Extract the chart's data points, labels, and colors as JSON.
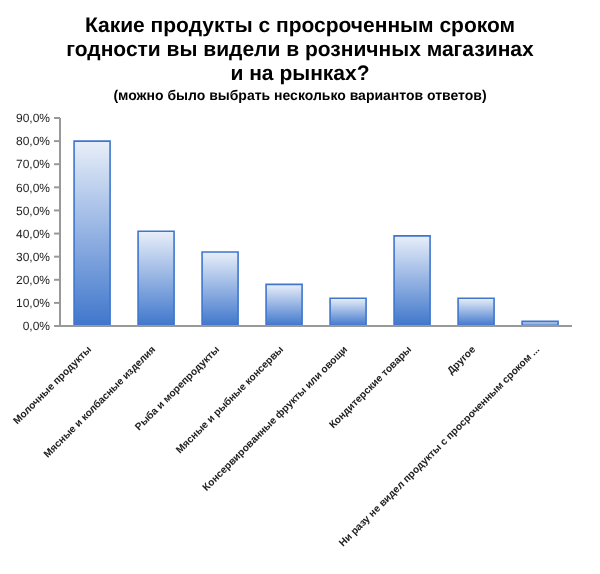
{
  "chart_data": {
    "type": "bar",
    "title": "Какие продукты с просроченным сроком годности вы видели в розничных магазинах и на рынках?",
    "subtitle": "(можно было выбрать несколько вариантов ответов)",
    "categories": [
      "Молочные продукты",
      "Мясные и колбасные изделия",
      "Рыба и морепродукты",
      "Мясные и рыбные консервы",
      "Консервированные фрукты или овощи",
      "Кондитерские товары",
      "Другое",
      "Ни разу не видел продукты с просроченным сроком ..."
    ],
    "values": [
      80,
      41,
      32,
      18,
      12,
      39,
      12,
      2
    ],
    "color": "#3f76cc",
    "ylim": [
      0,
      90
    ],
    "yticks": [
      {
        "value": 0,
        "label": "0,0%"
      },
      {
        "value": 10,
        "label": "10,0%"
      },
      {
        "value": 20,
        "label": "20,0%"
      },
      {
        "value": 30,
        "label": "30,0%"
      },
      {
        "value": 40,
        "label": "40,0%"
      },
      {
        "value": 50,
        "label": "50,0%"
      },
      {
        "value": 60,
        "label": "60,0%"
      },
      {
        "value": 70,
        "label": "70,0%"
      },
      {
        "value": 80,
        "label": "80,0%"
      },
      {
        "value": 90,
        "label": "90,0%"
      }
    ],
    "grid": false
  }
}
